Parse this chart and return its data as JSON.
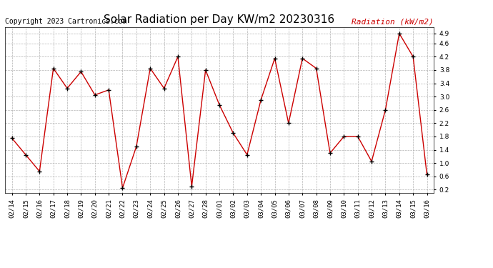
{
  "title": "Solar Radiation per Day KW/m2 20230316",
  "copyright": "Copyright 2023 Cartronics.com",
  "legend_label": "Radiation (kW/m2)",
  "dates": [
    "02/14",
    "02/15",
    "02/16",
    "02/17",
    "02/18",
    "02/19",
    "02/20",
    "02/21",
    "02/22",
    "02/23",
    "02/24",
    "02/25",
    "02/26",
    "02/27",
    "02/28",
    "03/01",
    "03/02",
    "03/03",
    "03/04",
    "03/05",
    "03/06",
    "03/07",
    "03/08",
    "03/09",
    "03/10",
    "03/11",
    "03/12",
    "03/13",
    "03/14",
    "03/15",
    "03/16"
  ],
  "values": [
    1.75,
    1.25,
    0.75,
    3.85,
    3.25,
    3.75,
    3.05,
    3.2,
    0.25,
    1.5,
    3.85,
    3.25,
    4.2,
    0.3,
    3.8,
    2.75,
    1.9,
    1.25,
    2.9,
    4.15,
    2.2,
    4.15,
    3.85,
    1.3,
    1.8,
    1.8,
    1.05,
    2.6,
    4.9,
    4.2,
    0.65
  ],
  "line_color": "#cc0000",
  "marker_color": "#000000",
  "bg_color": "#ffffff",
  "grid_color": "#aaaaaa",
  "title_color": "#000000",
  "copyright_color": "#000000",
  "legend_color": "#cc0000",
  "ylim": [
    0.1,
    5.1
  ],
  "yticks": [
    0.2,
    0.6,
    1.0,
    1.4,
    1.8,
    2.2,
    2.6,
    3.0,
    3.4,
    3.8,
    4.2,
    4.6,
    4.9
  ],
  "title_fontsize": 11,
  "copyright_fontsize": 7,
  "legend_fontsize": 8,
  "tick_fontsize": 6.5
}
